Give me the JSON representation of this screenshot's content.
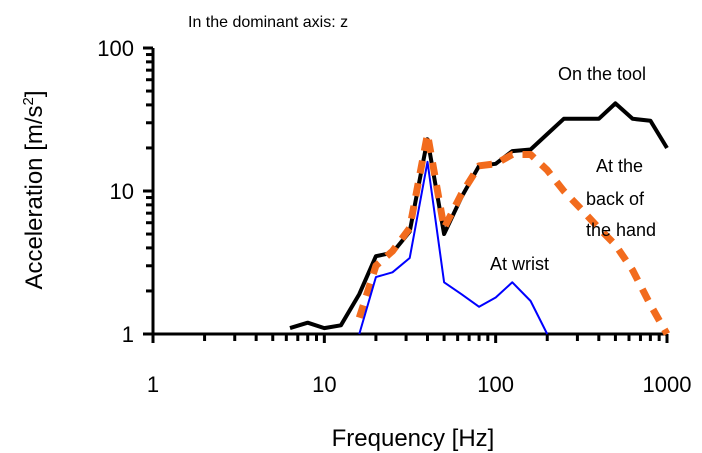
{
  "chart_data": {
    "type": "line",
    "subtitle": "In the dominant axis: z",
    "xlabel": "Frequency  [Hz]",
    "ylabel": "Acceleration  [m/s²]",
    "xscale": "log",
    "yscale": "log",
    "xlim": [
      1,
      1000
    ],
    "ylim": [
      1,
      100
    ],
    "x_ticks": [
      "1",
      "10",
      "100",
      "1000"
    ],
    "y_ticks": [
      "1",
      "10",
      "100"
    ],
    "grid": false,
    "series": [
      {
        "name": "On the tool",
        "color": "#000000",
        "style": "solid-thick",
        "x": [
          6.3,
          8,
          10,
          12.5,
          16,
          20,
          25,
          31.5,
          40,
          50,
          63,
          80,
          100,
          125,
          160,
          200,
          250,
          315,
          400,
          500,
          630,
          800,
          1000
        ],
        "y": [
          1.1,
          1.2,
          1.1,
          1.15,
          1.9,
          3.5,
          3.7,
          5.2,
          23,
          5.0,
          9.0,
          15,
          15.5,
          19,
          19.5,
          25,
          32,
          32,
          32,
          41,
          32,
          31,
          20
        ]
      },
      {
        "name": "At the back of the hand",
        "color": "#f26b1d",
        "style": "dashed-thick",
        "x": [
          16,
          20,
          25,
          31.5,
          40,
          50,
          63,
          80,
          100,
          125,
          160,
          200,
          250,
          315,
          400,
          500,
          630,
          800,
          1000
        ],
        "y": [
          1.3,
          3.0,
          3.8,
          5.5,
          25,
          5.5,
          9.5,
          15,
          15.5,
          18,
          18,
          14,
          10,
          7.5,
          5.5,
          4.2,
          2.8,
          1.6,
          1.0
        ]
      },
      {
        "name": "At wrist",
        "color": "#0000ff",
        "style": "solid-thin",
        "x": [
          16,
          20,
          25,
          31.5,
          40,
          50,
          63,
          80,
          100,
          125,
          160,
          200
        ],
        "y": [
          1.0,
          2.5,
          2.7,
          3.4,
          16,
          2.3,
          1.9,
          1.55,
          1.8,
          2.3,
          1.7,
          1.0
        ]
      }
    ],
    "annotations": {
      "tool": "On the tool",
      "hand_line1": "At the",
      "hand_line2": "back of",
      "hand_line3": "the hand",
      "wrist": "At wrist"
    }
  }
}
